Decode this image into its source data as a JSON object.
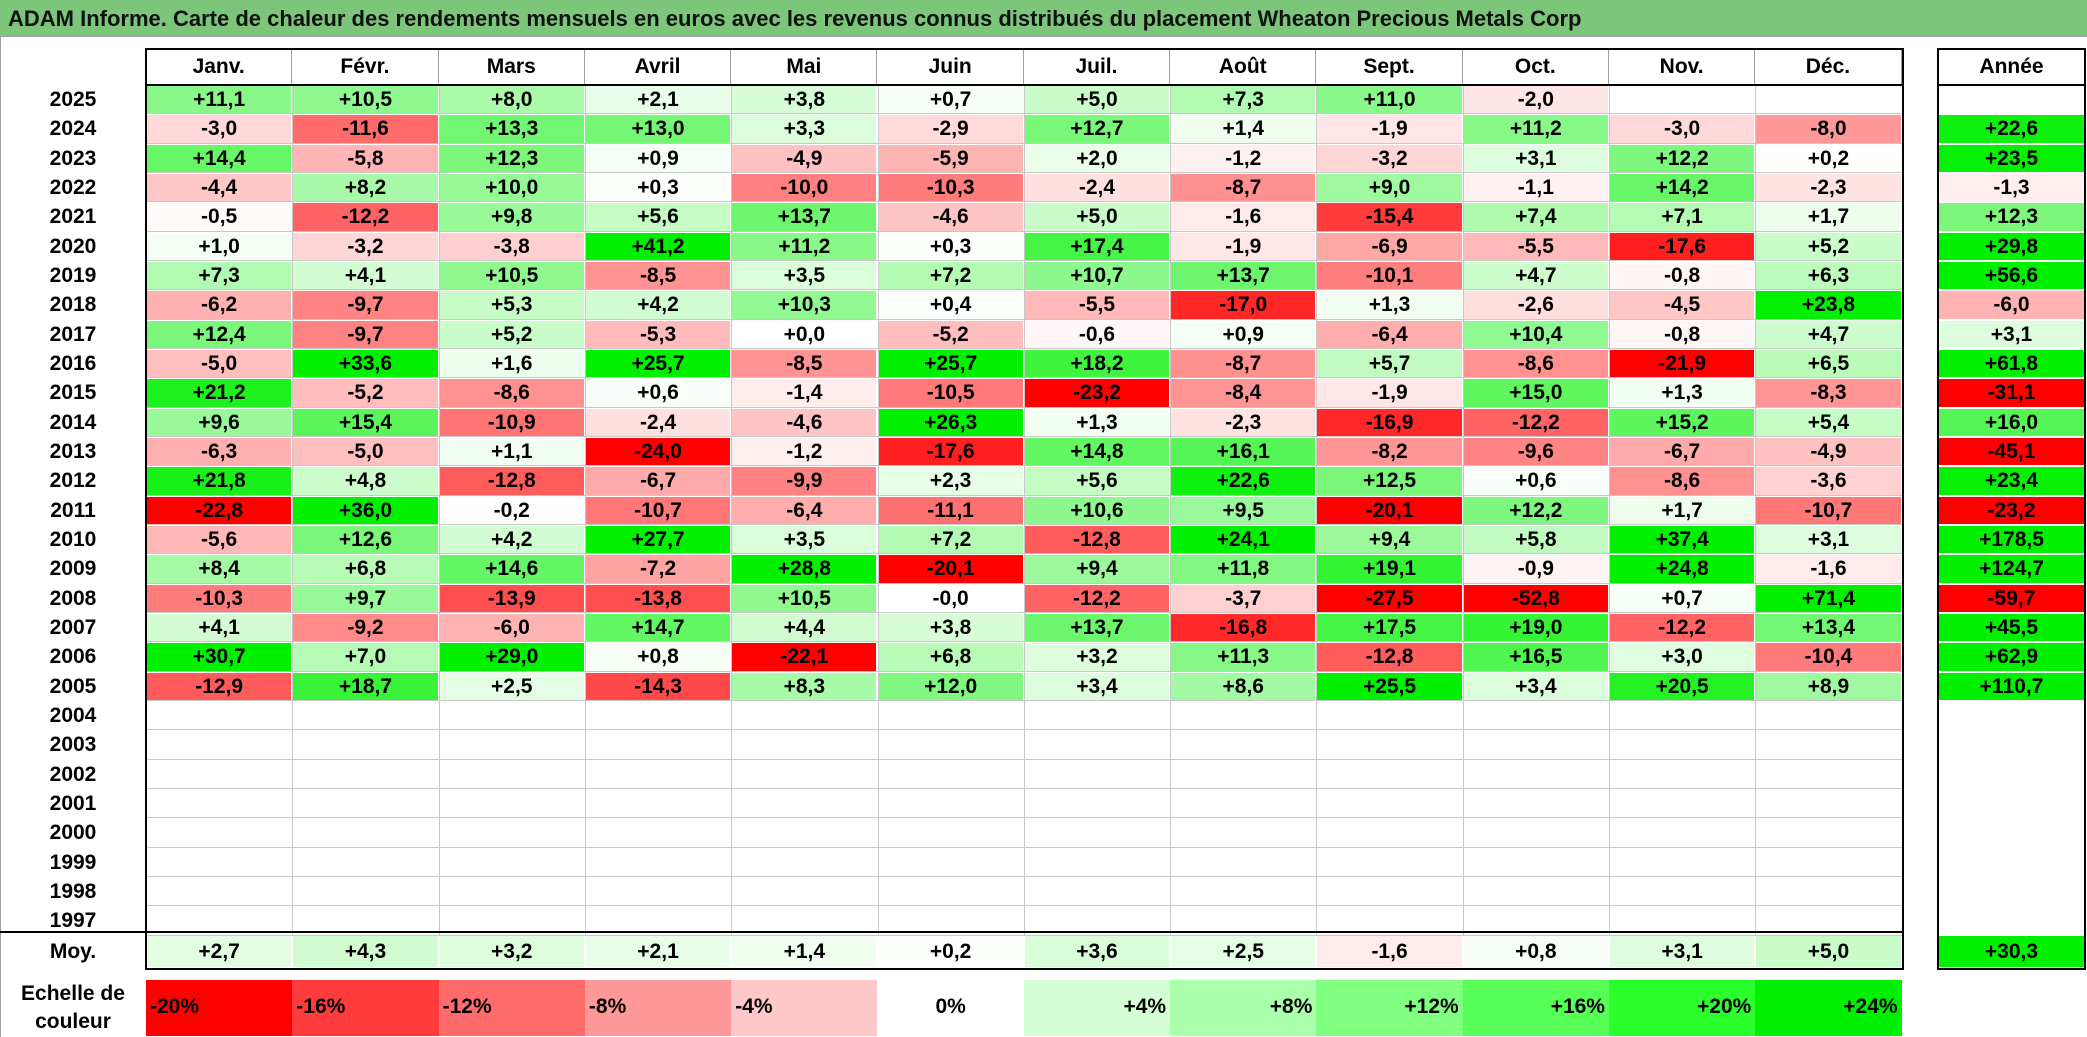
{
  "title": "ADAM Informe. Carte de chaleur des rendements mensuels en euros avec les revenus connus distribués du placement Wheaton Precious Metals Corp",
  "chart_data": {
    "type": "heatmap",
    "title": "ADAM Informe. Carte de chaleur des rendements mensuels en euros avec les revenus connus distribués du placement Wheaton Precious Metals Corp",
    "months": [
      "Janv.",
      "Févr.",
      "Mars",
      "Avril",
      "Mai",
      "Juin",
      "Juil.",
      "Août",
      "Sept.",
      "Oct.",
      "Nov.",
      "Déc."
    ],
    "year_header": "Année",
    "average_label": "Moy.",
    "rows": [
      {
        "year": "2025",
        "values": [
          "+11,1",
          "+10,5",
          "+8,0",
          "+2,1",
          "+3,8",
          "+0,7",
          "+5,0",
          "+7,3",
          "+11,0",
          "-2,0",
          "",
          ""
        ],
        "annual": ""
      },
      {
        "year": "2024",
        "values": [
          "-3,0",
          "-11,6",
          "+13,3",
          "+13,0",
          "+3,3",
          "-2,9",
          "+12,7",
          "+1,4",
          "-1,9",
          "+11,2",
          "-3,0",
          "-8,0"
        ],
        "annual": "+22,6"
      },
      {
        "year": "2023",
        "values": [
          "+14,4",
          "-5,8",
          "+12,3",
          "+0,9",
          "-4,9",
          "-5,9",
          "+2,0",
          "-1,2",
          "-3,2",
          "+3,1",
          "+12,2",
          "+0,2"
        ],
        "annual": "+23,5"
      },
      {
        "year": "2022",
        "values": [
          "-4,4",
          "+8,2",
          "+10,0",
          "+0,3",
          "-10,0",
          "-10,3",
          "-2,4",
          "-8,7",
          "+9,0",
          "-1,1",
          "+14,2",
          "-2,3"
        ],
        "annual": "-1,3"
      },
      {
        "year": "2021",
        "values": [
          "-0,5",
          "-12,2",
          "+9,8",
          "+5,6",
          "+13,7",
          "-4,6",
          "+5,0",
          "-1,6",
          "-15,4",
          "+7,4",
          "+7,1",
          "+1,7"
        ],
        "annual": "+12,3"
      },
      {
        "year": "2020",
        "values": [
          "+1,0",
          "-3,2",
          "-3,8",
          "+41,2",
          "+11,2",
          "+0,3",
          "+17,4",
          "-1,9",
          "-6,9",
          "-5,5",
          "-17,6",
          "+5,2"
        ],
        "annual": "+29,8"
      },
      {
        "year": "2019",
        "values": [
          "+7,3",
          "+4,1",
          "+10,5",
          "-8,5",
          "+3,5",
          "+7,2",
          "+10,7",
          "+13,7",
          "-10,1",
          "+4,7",
          "-0,8",
          "+6,3"
        ],
        "annual": "+56,6"
      },
      {
        "year": "2018",
        "values": [
          "-6,2",
          "-9,7",
          "+5,3",
          "+4,2",
          "+10,3",
          "+0,4",
          "-5,5",
          "-17,0",
          "+1,3",
          "-2,6",
          "-4,5",
          "+23,8"
        ],
        "annual": "-6,0"
      },
      {
        "year": "2017",
        "values": [
          "+12,4",
          "-9,7",
          "+5,2",
          "-5,3",
          "+0,0",
          "-5,2",
          "-0,6",
          "+0,9",
          "-6,4",
          "+10,4",
          "-0,8",
          "+4,7"
        ],
        "annual": "+3,1"
      },
      {
        "year": "2016",
        "values": [
          "-5,0",
          "+33,6",
          "+1,6",
          "+25,7",
          "-8,5",
          "+25,7",
          "+18,2",
          "-8,7",
          "+5,7",
          "-8,6",
          "-21,9",
          "+6,5"
        ],
        "annual": "+61,8"
      },
      {
        "year": "2015",
        "values": [
          "+21,2",
          "-5,2",
          "-8,6",
          "+0,6",
          "-1,4",
          "-10,5",
          "-23,2",
          "-8,4",
          "-1,9",
          "+15,0",
          "+1,3",
          "-8,3"
        ],
        "annual": "-31,1"
      },
      {
        "year": "2014",
        "values": [
          "+9,6",
          "+15,4",
          "-10,9",
          "-2,4",
          "-4,6",
          "+26,3",
          "+1,3",
          "-2,3",
          "-16,9",
          "-12,2",
          "+15,2",
          "+5,4"
        ],
        "annual": "+16,0"
      },
      {
        "year": "2013",
        "values": [
          "-6,3",
          "-5,0",
          "+1,1",
          "-24,0",
          "-1,2",
          "-17,6",
          "+14,8",
          "+16,1",
          "-8,2",
          "-9,6",
          "-6,7",
          "-4,9"
        ],
        "annual": "-45,1"
      },
      {
        "year": "2012",
        "values": [
          "+21,8",
          "+4,8",
          "-12,8",
          "-6,7",
          "-9,9",
          "+2,3",
          "+5,6",
          "+22,6",
          "+12,5",
          "+0,6",
          "-8,6",
          "-3,6"
        ],
        "annual": "+23,4"
      },
      {
        "year": "2011",
        "values": [
          "-22,8",
          "+36,0",
          "-0,2",
          "-10,7",
          "-6,4",
          "-11,1",
          "+10,6",
          "+9,5",
          "-20,1",
          "+12,2",
          "+1,7",
          "-10,7"
        ],
        "annual": "-23,2"
      },
      {
        "year": "2010",
        "values": [
          "-5,6",
          "+12,6",
          "+4,2",
          "+27,7",
          "+3,5",
          "+7,2",
          "-12,8",
          "+24,1",
          "+9,4",
          "+5,8",
          "+37,4",
          "+3,1"
        ],
        "annual": "+178,5"
      },
      {
        "year": "2009",
        "values": [
          "+8,4",
          "+6,8",
          "+14,6",
          "-7,2",
          "+28,8",
          "-20,1",
          "+9,4",
          "+11,8",
          "+19,1",
          "-0,9",
          "+24,8",
          "-1,6"
        ],
        "annual": "+124,7"
      },
      {
        "year": "2008",
        "values": [
          "-10,3",
          "+9,7",
          "-13,9",
          "-13,8",
          "+10,5",
          "-0,0",
          "-12,2",
          "-3,7",
          "-27,5",
          "-52,8",
          "+0,7",
          "+71,4"
        ],
        "annual": "-59,7"
      },
      {
        "year": "2007",
        "values": [
          "+4,1",
          "-9,2",
          "-6,0",
          "+14,7",
          "+4,4",
          "+3,8",
          "+13,7",
          "-16,8",
          "+17,5",
          "+19,0",
          "-12,2",
          "+13,4"
        ],
        "annual": "+45,5"
      },
      {
        "year": "2006",
        "values": [
          "+30,7",
          "+7,0",
          "+29,0",
          "+0,8",
          "-22,1",
          "+6,8",
          "+3,2",
          "+11,3",
          "-12,8",
          "+16,5",
          "+3,0",
          "-10,4"
        ],
        "annual": "+62,9"
      },
      {
        "year": "2005",
        "values": [
          "-12,9",
          "+18,7",
          "+2,5",
          "-14,3",
          "+8,3",
          "+12,0",
          "+3,4",
          "+8,6",
          "+25,5",
          "+3,4",
          "+20,5",
          "+8,9"
        ],
        "annual": "+110,7"
      },
      {
        "year": "2004",
        "values": [
          "",
          "",
          "",
          "",
          "",
          "",
          "",
          "",
          "",
          "",
          "",
          ""
        ],
        "annual": ""
      },
      {
        "year": "2003",
        "values": [
          "",
          "",
          "",
          "",
          "",
          "",
          "",
          "",
          "",
          "",
          "",
          ""
        ],
        "annual": ""
      },
      {
        "year": "2002",
        "values": [
          "",
          "",
          "",
          "",
          "",
          "",
          "",
          "",
          "",
          "",
          "",
          ""
        ],
        "annual": ""
      },
      {
        "year": "2001",
        "values": [
          "",
          "",
          "",
          "",
          "",
          "",
          "",
          "",
          "",
          "",
          "",
          ""
        ],
        "annual": ""
      },
      {
        "year": "2000",
        "values": [
          "",
          "",
          "",
          "",
          "",
          "",
          "",
          "",
          "",
          "",
          "",
          ""
        ],
        "annual": ""
      },
      {
        "year": "1999",
        "values": [
          "",
          "",
          "",
          "",
          "",
          "",
          "",
          "",
          "",
          "",
          "",
          ""
        ],
        "annual": ""
      },
      {
        "year": "1998",
        "values": [
          "",
          "",
          "",
          "",
          "",
          "",
          "",
          "",
          "",
          "",
          "",
          ""
        ],
        "annual": ""
      },
      {
        "year": "1997",
        "values": [
          "",
          "",
          "",
          "",
          "",
          "",
          "",
          "",
          "",
          "",
          "",
          ""
        ],
        "annual": ""
      }
    ],
    "averages": [
      "+2,7",
      "+4,3",
      "+3,2",
      "+2,1",
      "+1,4",
      "+0,2",
      "+3,6",
      "+2,5",
      "-1,6",
      "+0,8",
      "+3,1",
      "+5,0"
    ],
    "average_annual": "+30,3",
    "color_scale": {
      "label": "Echelle de couleur",
      "stops": [
        "-20%",
        "-16%",
        "-12%",
        "-8%",
        "-4%",
        "0%",
        "+4%",
        "+8%",
        "+12%",
        "+16%",
        "+20%",
        "+24%"
      ],
      "colors": [
        "#ff0000",
        "#ff3b3b",
        "#ff6b6b",
        "#ff9999",
        "#ffc8c8",
        "#ffffff",
        "#d4ffd4",
        "#aaffaa",
        "#80ff80",
        "#55ff55",
        "#2bff2b",
        "#00f000"
      ]
    }
  }
}
